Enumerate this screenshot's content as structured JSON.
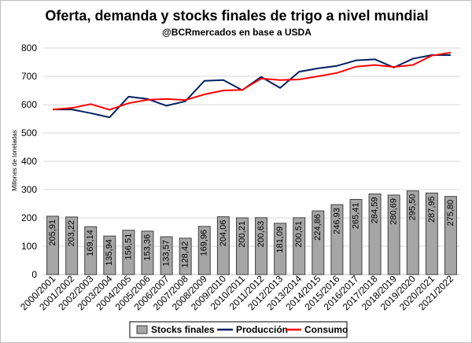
{
  "chart_data": {
    "type": "bar",
    "title": "Oferta, demanda y stocks finales de trigo a nivel mundial",
    "subtitle": "@BCRmercados en base a USDA",
    "ylabel": "Millones de toneladas",
    "ylim": [
      0,
      800
    ],
    "yticks": [
      0,
      100,
      200,
      300,
      400,
      500,
      600,
      700,
      800
    ],
    "grid": true,
    "legend_position": "bottom",
    "categories": [
      "2000/2001",
      "2001/2002",
      "2002/2003",
      "2003/2004",
      "2004/2005",
      "2005/2006",
      "2006/2007",
      "2007/2008",
      "2008/2009",
      "2009/2010",
      "2010/2011",
      "2011/2012",
      "2012/2013",
      "2013/2014",
      "2014/2015",
      "2015/2016",
      "2016/2017",
      "2017/2018",
      "2018/2019",
      "2019/2020",
      "2020/2021",
      "2021/2022"
    ],
    "series": [
      {
        "name": "Stocks finales",
        "type": "bar",
        "color": "#a6a6a6",
        "values": [
          205.91,
          203.22,
          169.14,
          135.94,
          156.51,
          153.36,
          133.57,
          128.42,
          169.96,
          204.06,
          200.21,
          200.63,
          181.09,
          200.51,
          224.86,
          246.93,
          265.41,
          284.59,
          280.69,
          295.5,
          287.95,
          275.8
        ],
        "labels": [
          "205,91",
          "203,22",
          "169,14",
          "135,94",
          "156,51",
          "153,36",
          "133,57",
          "128,42",
          "169,96",
          "204,06",
          "200,21",
          "200,63",
          "181,09",
          "200,51",
          "224,86",
          "246,93",
          "265,41",
          "284,59",
          "280,69",
          "295,50",
          "287,95",
          "275,80"
        ]
      },
      {
        "name": "Producción",
        "type": "line",
        "color": "#002060",
        "values": [
          583,
          583,
          570,
          555,
          628,
          620,
          596,
          612,
          684,
          687,
          651,
          698,
          659,
          716,
          728,
          737,
          756,
          760,
          731,
          762,
          775,
          775
        ]
      },
      {
        "name": "Consumo",
        "type": "line",
        "color": "#ff0000",
        "values": [
          583,
          588,
          602,
          582,
          605,
          617,
          620,
          616,
          636,
          650,
          652,
          692,
          687,
          689,
          700,
          712,
          734,
          740,
          733,
          740,
          773,
          784
        ]
      }
    ]
  }
}
